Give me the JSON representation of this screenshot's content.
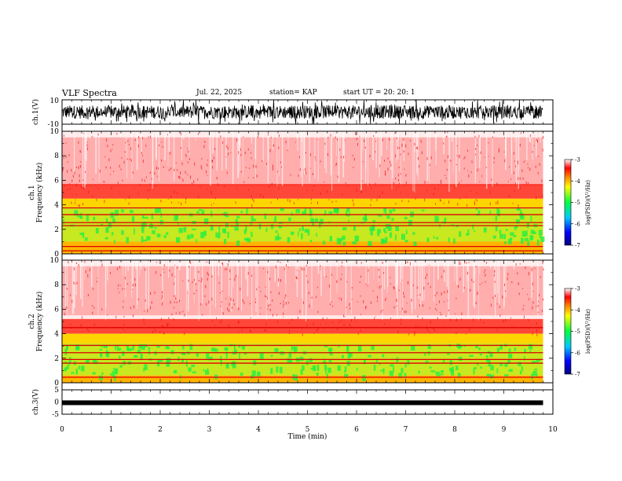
{
  "header": {
    "title": "VLF Spectra",
    "date": "Jul. 22, 2025",
    "station": "station= KAP",
    "start": "start UT =  20: 20: 1"
  },
  "chart_data": [
    {
      "type": "line",
      "name": "ch1-waveform",
      "ylabel": "ch.1(V)",
      "ylim": [
        -10,
        10
      ],
      "ytick_labels": [
        "10",
        "-10"
      ],
      "xlim": [
        0,
        10
      ],
      "description_series": "noisy voltage waveform, 0–9.8 min"
    },
    {
      "type": "heatmap",
      "name": "ch1-spectrogram",
      "ylabel": "ch.1\nFrequency (kHz)",
      "ylim": [
        0,
        10
      ],
      "yticks": [
        0,
        2,
        4,
        6,
        8,
        10
      ],
      "ytick_labels": [
        "0",
        "2",
        "4",
        "6",
        "8",
        "10"
      ],
      "xlim": [
        0,
        10
      ],
      "data_extent_min": 9.8,
      "bands_khz": {
        "green_low": 1.0,
        "green_high": 3.8,
        "yellow_top": 4.5
      },
      "lines_khz": [
        3.75,
        3.2,
        2.55,
        2.3,
        0.6,
        0.25
      ],
      "colorbar": {
        "label": "log(PSD)(V²/Hz)",
        "range": [
          -7,
          -3
        ],
        "tick_labels": [
          "-3",
          "-4",
          "-5",
          "-6",
          "-7"
        ]
      }
    },
    {
      "type": "heatmap",
      "name": "ch2-spectrogram",
      "ylabel": "ch.2\nFrequency (kHz)",
      "ylim": [
        0,
        10
      ],
      "yticks": [
        0,
        2,
        4,
        6,
        8,
        10
      ],
      "ytick_labels": [
        "0",
        "2",
        "4",
        "6",
        "8",
        "10"
      ],
      "xlim": [
        0,
        10
      ],
      "data_extent_min": 9.8,
      "bands_khz": {
        "green_low": 0.6,
        "green_high": 3.2,
        "yellow_top": 4.0
      },
      "lines_khz": [
        4.5,
        3.05,
        2.45,
        1.9,
        1.6,
        0.45
      ],
      "colorbar": {
        "label": "log(PSD)(V²/Hz)",
        "range": [
          -7,
          -3
        ],
        "tick_labels": [
          "-3",
          "-4",
          "-5",
          "-6",
          "-7"
        ]
      }
    },
    {
      "type": "line",
      "name": "ch3-waveform",
      "ylabel": "ch.3(V)",
      "ylim": [
        -5,
        5
      ],
      "yticks": [
        5,
        0,
        -5
      ],
      "ytick_labels": [
        "5",
        "0",
        "-5"
      ],
      "level": -0.3,
      "xlim": [
        0,
        10
      ],
      "xticks": [
        0,
        1,
        2,
        3,
        4,
        5,
        6,
        7,
        8,
        9,
        10
      ],
      "xtick_labels": [
        "0",
        "1",
        "2",
        "3",
        "4",
        "5",
        "6",
        "7",
        "8",
        "9",
        "10"
      ],
      "xlabel": "Time (min)"
    }
  ]
}
